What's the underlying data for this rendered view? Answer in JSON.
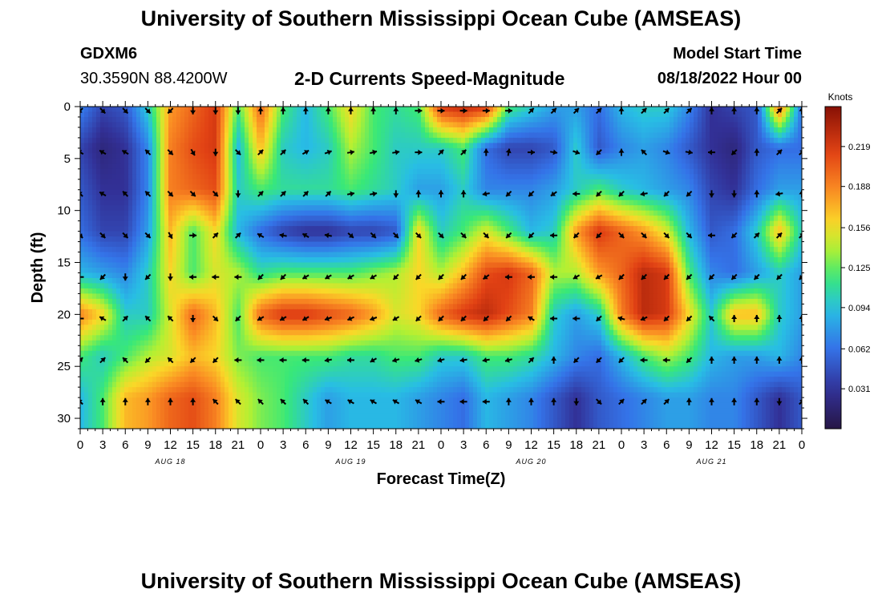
{
  "header": {
    "title": "University of Southern Mississippi Ocean Cube (AMSEAS)",
    "station": "GDXM6",
    "location": "30.3590N  88.4200W",
    "plot_title": "2-D Currents Speed-Magnitude",
    "model_start_label": "Model Start Time",
    "model_start_value": "08/18/2022 Hour 00"
  },
  "footer": {
    "title": "University of Southern Mississippi Ocean Cube (AMSEAS)"
  },
  "chart_data": {
    "type": "heatmap",
    "title": "2-D Currents Speed-Magnitude",
    "xlabel": "Forecast Time(Z)",
    "ylabel": "Depth (ft)",
    "x_tick_labels": [
      "0",
      "3",
      "6",
      "9",
      "12",
      "15",
      "18",
      "21",
      "0",
      "3",
      "6",
      "9",
      "12",
      "15",
      "18",
      "21",
      "0",
      "3",
      "6",
      "9",
      "12",
      "15",
      "18",
      "21",
      "0",
      "3",
      "6",
      "9",
      "12",
      "15",
      "18",
      "21",
      "0"
    ],
    "date_labels": [
      {
        "label": "AUG 18",
        "hour": 12
      },
      {
        "label": "AUG 19",
        "hour": 36
      },
      {
        "label": "AUG 20",
        "hour": 60
      },
      {
        "label": "AUG 21",
        "hour": 84
      }
    ],
    "xlim": [
      0,
      96
    ],
    "ylim": [
      0,
      31
    ],
    "y_ticks": [
      0,
      5,
      10,
      15,
      20,
      25,
      30
    ],
    "colorbar": {
      "unit": "Knots",
      "min": 0.0,
      "max": 0.25,
      "ticks": [
        "0.031",
        "0.062",
        "0.094",
        "0.125",
        "0.156",
        "0.188",
        "0.219"
      ],
      "tick_values": [
        0.031,
        0.062,
        0.094,
        0.125,
        0.156,
        0.188,
        0.219
      ]
    },
    "depths": [
      0,
      4,
      8,
      12,
      16,
      20,
      24,
      28
    ],
    "times": [
      0,
      3,
      6,
      9,
      12,
      15,
      18,
      21,
      24,
      27,
      30,
      33,
      36,
      39,
      42,
      45,
      48,
      51,
      54,
      57,
      60,
      63,
      66,
      69,
      72,
      75,
      78,
      81,
      84,
      87,
      90,
      93,
      96
    ],
    "speed": [
      [
        0.07,
        0.04,
        0.05,
        0.1,
        0.18,
        0.2,
        0.22,
        0.12,
        0.2,
        0.12,
        0.09,
        0.12,
        0.16,
        0.12,
        0.11,
        0.12,
        0.22,
        0.23,
        0.22,
        0.12,
        0.1,
        0.08,
        0.08,
        0.06,
        0.09,
        0.1,
        0.1,
        0.07,
        0.03,
        0.04,
        0.05,
        0.2,
        0.06
      ],
      [
        0.04,
        0.02,
        0.03,
        0.07,
        0.19,
        0.21,
        0.22,
        0.09,
        0.17,
        0.1,
        0.09,
        0.1,
        0.14,
        0.12,
        0.1,
        0.1,
        0.1,
        0.12,
        0.06,
        0.04,
        0.04,
        0.05,
        0.1,
        0.05,
        0.07,
        0.08,
        0.07,
        0.05,
        0.03,
        0.02,
        0.05,
        0.06,
        0.06
      ],
      [
        0.05,
        0.03,
        0.03,
        0.07,
        0.19,
        0.2,
        0.21,
        0.1,
        0.12,
        0.11,
        0.11,
        0.11,
        0.12,
        0.11,
        0.1,
        0.08,
        0.08,
        0.1,
        0.07,
        0.07,
        0.07,
        0.08,
        0.1,
        0.12,
        0.1,
        0.09,
        0.08,
        0.07,
        0.04,
        0.03,
        0.06,
        0.08,
        0.08
      ],
      [
        0.06,
        0.04,
        0.04,
        0.08,
        0.17,
        0.12,
        0.16,
        0.09,
        0.06,
        0.04,
        0.03,
        0.03,
        0.04,
        0.04,
        0.05,
        0.16,
        0.1,
        0.12,
        0.15,
        0.12,
        0.09,
        0.1,
        0.18,
        0.22,
        0.2,
        0.18,
        0.15,
        0.09,
        0.05,
        0.06,
        0.1,
        0.17,
        0.1
      ],
      [
        0.09,
        0.08,
        0.07,
        0.1,
        0.16,
        0.12,
        0.15,
        0.14,
        0.11,
        0.12,
        0.12,
        0.12,
        0.12,
        0.13,
        0.14,
        0.16,
        0.14,
        0.17,
        0.21,
        0.22,
        0.2,
        0.14,
        0.14,
        0.18,
        0.2,
        0.23,
        0.22,
        0.12,
        0.07,
        0.06,
        0.08,
        0.1,
        0.08
      ],
      [
        0.19,
        0.16,
        0.1,
        0.1,
        0.15,
        0.2,
        0.17,
        0.12,
        0.2,
        0.22,
        0.22,
        0.21,
        0.2,
        0.18,
        0.15,
        0.16,
        0.2,
        0.22,
        0.23,
        0.21,
        0.19,
        0.1,
        0.08,
        0.1,
        0.19,
        0.23,
        0.22,
        0.16,
        0.1,
        0.17,
        0.17,
        0.1,
        0.08
      ],
      [
        0.12,
        0.1,
        0.12,
        0.14,
        0.15,
        0.17,
        0.16,
        0.13,
        0.12,
        0.12,
        0.12,
        0.12,
        0.11,
        0.11,
        0.12,
        0.12,
        0.1,
        0.1,
        0.12,
        0.12,
        0.11,
        0.09,
        0.07,
        0.06,
        0.09,
        0.12,
        0.14,
        0.12,
        0.09,
        0.08,
        0.08,
        0.09,
        0.07
      ],
      [
        0.09,
        0.12,
        0.17,
        0.18,
        0.2,
        0.21,
        0.19,
        0.15,
        0.13,
        0.12,
        0.1,
        0.08,
        0.09,
        0.09,
        0.09,
        0.08,
        0.07,
        0.06,
        0.09,
        0.08,
        0.07,
        0.05,
        0.03,
        0.05,
        0.06,
        0.07,
        0.08,
        0.08,
        0.07,
        0.07,
        0.05,
        0.03,
        0.05
      ]
    ],
    "arrows": {
      "times": [
        0,
        3,
        6,
        9,
        12,
        15,
        18,
        21,
        24,
        27,
        30,
        33,
        36,
        39,
        42,
        45,
        48,
        51,
        54,
        57,
        60,
        63,
        66,
        69,
        72,
        75,
        78,
        81,
        84,
        87,
        90,
        93,
        96
      ],
      "depths": [
        0,
        4,
        8,
        12,
        16,
        20,
        24,
        28
      ],
      "directions_deg": [
        [
          225,
          135,
          135,
          135,
          225,
          180,
          180,
          180,
          0,
          0,
          0,
          0,
          0,
          0,
          0,
          90,
          90,
          90,
          90,
          90,
          45,
          45,
          45,
          45,
          0,
          45,
          45,
          45,
          0,
          0,
          0,
          45,
          0
        ],
        [
          300,
          300,
          300,
          315,
          135,
          150,
          180,
          135,
          45,
          45,
          60,
          70,
          80,
          75,
          80,
          90,
          45,
          45,
          0,
          10,
          90,
          100,
          110,
          225,
          0,
          315,
          110,
          100,
          270,
          225,
          0,
          45,
          45
        ],
        [
          315,
          300,
          315,
          315,
          135,
          135,
          135,
          180,
          45,
          45,
          45,
          45,
          80,
          80,
          180,
          0,
          0,
          0,
          260,
          225,
          225,
          235,
          270,
          225,
          225,
          260,
          225,
          225,
          180,
          180,
          0,
          260,
          0
        ],
        [
          135,
          135,
          135,
          135,
          150,
          90,
          45,
          45,
          300,
          280,
          300,
          280,
          130,
          135,
          135,
          135,
          135,
          135,
          135,
          225,
          225,
          270,
          225,
          225,
          135,
          135,
          135,
          135,
          270,
          225,
          45,
          45,
          45
        ],
        [
          270,
          225,
          180,
          225,
          180,
          270,
          270,
          270,
          225,
          225,
          240,
          240,
          240,
          240,
          225,
          225,
          225,
          225,
          235,
          270,
          270,
          270,
          240,
          240,
          225,
          225,
          225,
          225,
          225,
          225,
          225,
          225,
          225
        ],
        [
          270,
          300,
          45,
          315,
          315,
          180,
          135,
          225,
          240,
          240,
          240,
          250,
          245,
          250,
          240,
          225,
          225,
          225,
          225,
          225,
          300,
          270,
          270,
          225,
          285,
          245,
          225,
          225,
          315,
          0,
          0,
          0,
          0
        ],
        [
          45,
          45,
          315,
          225,
          315,
          225,
          225,
          270,
          270,
          270,
          270,
          260,
          270,
          240,
          255,
          255,
          255,
          260,
          260,
          255,
          45,
          0,
          225,
          225,
          225,
          270,
          270,
          225,
          0,
          0,
          0,
          0,
          0
        ],
        [
          315,
          0,
          0,
          0,
          0,
          0,
          315,
          315,
          315,
          315,
          315,
          300,
          300,
          300,
          300,
          300,
          270,
          270,
          270,
          0,
          0,
          0,
          180,
          135,
          45,
          45,
          45,
          0,
          0,
          0,
          0,
          180,
          45
        ]
      ]
    }
  }
}
